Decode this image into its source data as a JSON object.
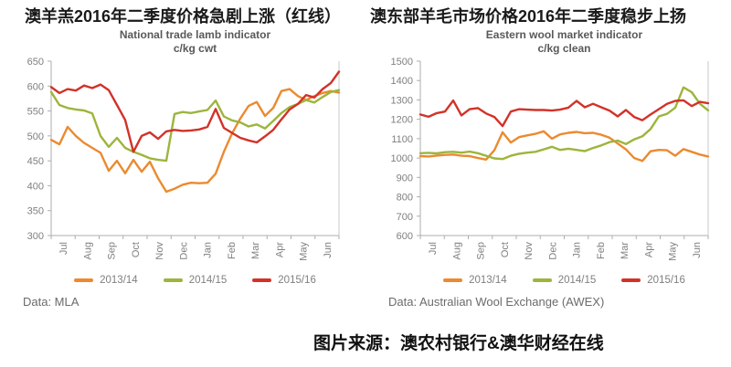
{
  "page": {
    "caption": "图片来源：澳农村银行&澳华财经在线"
  },
  "colors": {
    "orange": "#EB8A2F",
    "green": "#9CB53C",
    "red": "#D23229",
    "axis": "#ADADAD",
    "plot_border": "#C9C9C9",
    "tick_text": "#7F7F7F",
    "subtitle_text": "#595959",
    "title_text": "#1A1A1A"
  },
  "charts": [
    {
      "title_cn": "澳羊羔2016年二季度价格急剧上涨（红线）",
      "title_en": "National trade lamb indicator",
      "units": "c/kg cwt",
      "source": "Data: MLA"
    },
    {
      "title_cn": "澳东部羊毛市场价格2016年二季度稳步上扬",
      "title_en": "Eastern wool market indicator",
      "units": "c/kg clean",
      "source": "Data: Australian Wool Exchange (AWEX)"
    }
  ],
  "chart_data": [
    {
      "type": "line",
      "title": "National trade lamb indicator",
      "ylabel": "c/kg cwt",
      "xlabel": "",
      "x": [
        "Jul",
        "Aug",
        "Sep",
        "Oct",
        "Nov",
        "Dec",
        "Jan",
        "Feb",
        "Mar",
        "Apr",
        "May",
        "Jun"
      ],
      "points_per_month": 3,
      "ylim": [
        300,
        650
      ],
      "yticks": [
        650,
        600,
        550,
        500,
        450,
        400,
        350,
        300
      ],
      "grid": false,
      "legend_position": "bottom",
      "series": [
        {
          "name": "2013/14",
          "color": "#EB8A2F",
          "values": [
            492,
            483,
            518,
            500,
            486,
            476,
            466,
            430,
            450,
            425,
            452,
            428,
            448,
            415,
            388,
            394,
            402,
            406,
            405,
            406,
            424,
            468,
            505,
            535,
            560,
            568,
            540,
            556,
            590,
            594,
            580,
            572,
            580,
            586,
            590,
            587
          ]
        },
        {
          "name": "2014/15",
          "color": "#9CB53C",
          "values": [
            588,
            562,
            556,
            553,
            551,
            545,
            500,
            478,
            496,
            476,
            468,
            462,
            455,
            452,
            450,
            544,
            548,
            546,
            549,
            552,
            571,
            539,
            531,
            527,
            519,
            523,
            515,
            530,
            546,
            558,
            564,
            572,
            567,
            578,
            588,
            592
          ]
        },
        {
          "name": "2015/16",
          "color": "#D23229",
          "values": [
            598,
            586,
            594,
            591,
            601,
            596,
            603,
            592,
            562,
            532,
            468,
            500,
            507,
            494,
            509,
            512,
            510,
            511,
            513,
            518,
            554,
            516,
            506,
            496,
            491,
            487,
            499,
            512,
            533,
            553,
            564,
            582,
            577,
            594,
            606,
            629
          ]
        }
      ]
    },
    {
      "type": "line",
      "title": "Eastern wool market indicator",
      "ylabel": "c/kg clean",
      "xlabel": "",
      "x": [
        "Jul",
        "Aug",
        "Sep",
        "Oct",
        "Nov",
        "Dec",
        "Jan",
        "Feb",
        "Mar",
        "Apr",
        "May",
        "Jun"
      ],
      "points_per_month": 3,
      "ylim": [
        600,
        1500
      ],
      "yticks": [
        1500,
        1400,
        1300,
        1200,
        1100,
        1000,
        900,
        800,
        700,
        600
      ],
      "grid": false,
      "legend_position": "bottom",
      "series": [
        {
          "name": "2013/14",
          "color": "#EB8A2F",
          "values": [
            1010,
            1008,
            1013,
            1016,
            1018,
            1012,
            1010,
            1000,
            992,
            1040,
            1133,
            1080,
            1108,
            1117,
            1125,
            1138,
            1100,
            1122,
            1130,
            1135,
            1128,
            1130,
            1120,
            1105,
            1075,
            1045,
            1000,
            985,
            1035,
            1042,
            1040,
            1012,
            1046,
            1032,
            1018,
            1008
          ]
        },
        {
          "name": "2014/15",
          "color": "#9CB53C",
          "values": [
            1025,
            1027,
            1024,
            1030,
            1032,
            1028,
            1033,
            1025,
            1012,
            998,
            995,
            1012,
            1022,
            1028,
            1032,
            1045,
            1058,
            1042,
            1048,
            1042,
            1036,
            1052,
            1065,
            1082,
            1090,
            1072,
            1096,
            1112,
            1150,
            1215,
            1228,
            1260,
            1365,
            1340,
            1280,
            1246
          ]
        },
        {
          "name": "2015/16",
          "color": "#D23229",
          "values": [
            1225,
            1213,
            1232,
            1240,
            1297,
            1220,
            1252,
            1258,
            1230,
            1212,
            1165,
            1240,
            1252,
            1250,
            1248,
            1248,
            1245,
            1250,
            1260,
            1295,
            1262,
            1280,
            1262,
            1245,
            1215,
            1248,
            1212,
            1195,
            1225,
            1252,
            1280,
            1295,
            1298,
            1268,
            1290,
            1283
          ]
        }
      ]
    }
  ]
}
